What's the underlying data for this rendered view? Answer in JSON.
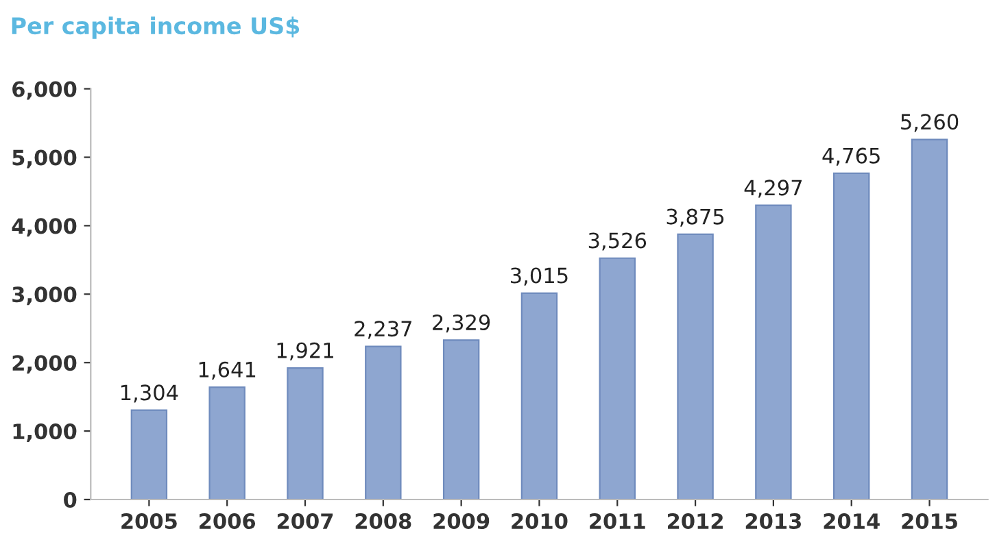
{
  "chart_data": {
    "type": "bar",
    "title": "Per capita income US$",
    "categories": [
      "2005",
      "2006",
      "2007",
      "2008",
      "2009",
      "2010",
      "2011",
      "2012",
      "2013",
      "2014",
      "2015"
    ],
    "values": [
      1304,
      1641,
      1921,
      2237,
      2329,
      3015,
      3526,
      3875,
      4297,
      4765,
      5260
    ],
    "value_labels": [
      "1,304",
      "1,641",
      "1,921",
      "2,237",
      "2,329",
      "3,015",
      "3,526",
      "3,875",
      "4,297",
      "4,765",
      "5,260"
    ],
    "color": "#8ea6d0",
    "ylim": [
      0,
      6000
    ],
    "yticks": [
      0,
      {
        "value": 1000,
        "label": "1,000"
      },
      {
        "value": 2000,
        "label": "2,000"
      },
      {
        "value": 3000,
        "label": "3,000"
      },
      {
        "value": 4000,
        "label": "4,000"
      },
      {
        "value": 5000,
        "label": "5,000"
      },
      {
        "value": 6000,
        "label": "6,000"
      }
    ],
    "grid": false,
    "legend": false
  }
}
